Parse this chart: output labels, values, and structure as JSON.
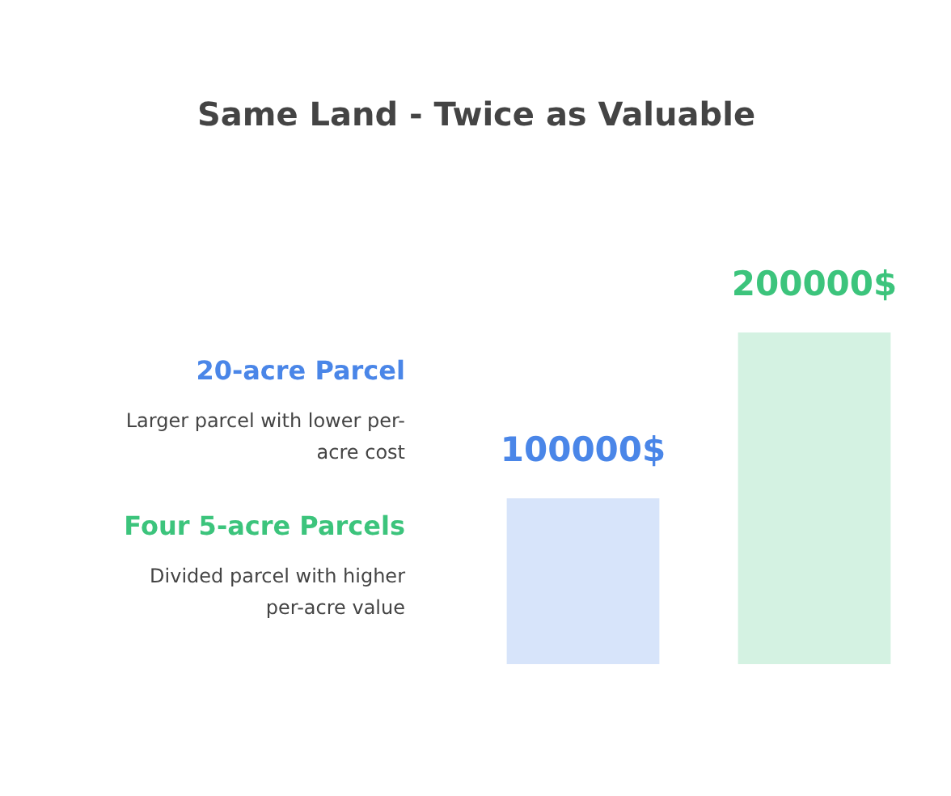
{
  "chart_data": {
    "type": "bar",
    "title": "Same Land - Twice as Valuable",
    "categories": [
      null,
      null
    ],
    "values": [
      100000,
      200000
    ],
    "colors": [
      "#4a86e8",
      "#3cc47c"
    ],
    "value_labels": [
      "100000$",
      "200000$"
    ],
    "annotations": [
      "20-acre Parcel",
      "Larger parcel with lower per-\nacre cost",
      "Four 5-acre Parcels",
      "Divided parcel with higher\nper-acre value"
    ],
    "grid": false
  }
}
